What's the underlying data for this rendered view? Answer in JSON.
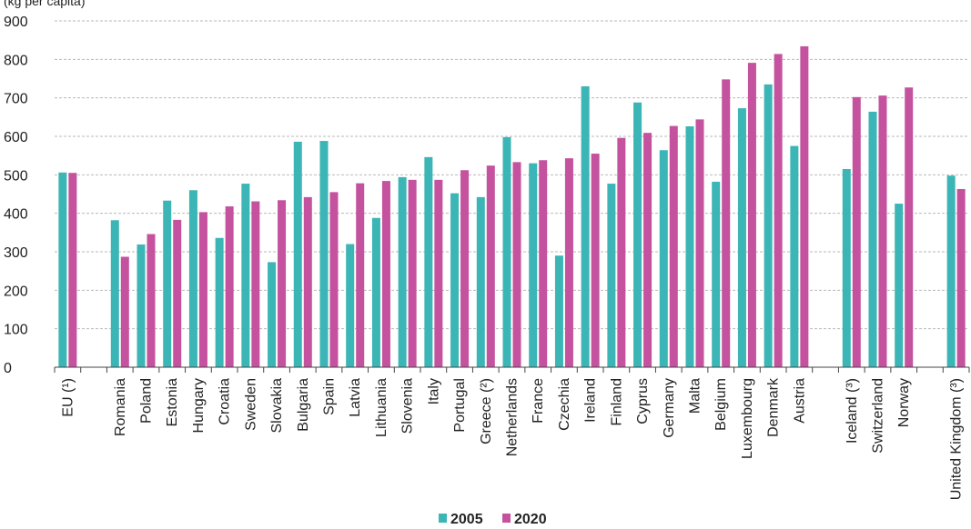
{
  "chart_data": {
    "type": "bar",
    "ylim": [
      0,
      900
    ],
    "yticks": [
      0,
      100,
      200,
      300,
      400,
      500,
      600,
      700,
      800,
      900
    ],
    "grid": true,
    "legend_position": "bottom-center",
    "unit_text": "(kg per capita)",
    "categories": [
      "EU (¹)",
      "",
      "Romania",
      "Poland",
      "Estonia",
      "Hungary",
      "Croatia",
      "Sweden",
      "Slovakia",
      "Bulgaria",
      "Spain",
      "Latvia",
      "Lithuania",
      "Slovenia",
      "Italy",
      "Portugal",
      "Greece (²)",
      "Netherlands",
      "France",
      "Czechia",
      "Ireland",
      "Finland",
      "Cyprus",
      "Germany",
      "Malta",
      "Belgium",
      "Luxembourg",
      "Denmark",
      "Austria",
      "",
      "Iceland (³)",
      "Switzerland",
      "Norway",
      "",
      "United Kingdom (³)"
    ],
    "series": [
      {
        "name": "2005",
        "color": "#3bb5b5",
        "values": [
          506,
          null,
          382,
          319,
          433,
          460,
          336,
          477,
          273,
          586,
          588,
          320,
          388,
          494,
          546,
          452,
          442,
          598,
          530,
          290,
          730,
          477,
          688,
          564,
          626,
          482,
          673,
          735,
          575,
          null,
          515,
          664,
          425,
          null,
          498
        ]
      },
      {
        "name": "2020",
        "color": "#c4529e",
        "values": [
          505,
          null,
          287,
          346,
          383,
          403,
          418,
          431,
          434,
          442,
          455,
          478,
          484,
          487,
          487,
          512,
          524,
          533,
          538,
          543,
          555,
          596,
          609,
          627,
          644,
          748,
          791,
          814,
          834,
          null,
          702,
          706,
          727,
          null,
          463
        ]
      }
    ]
  }
}
